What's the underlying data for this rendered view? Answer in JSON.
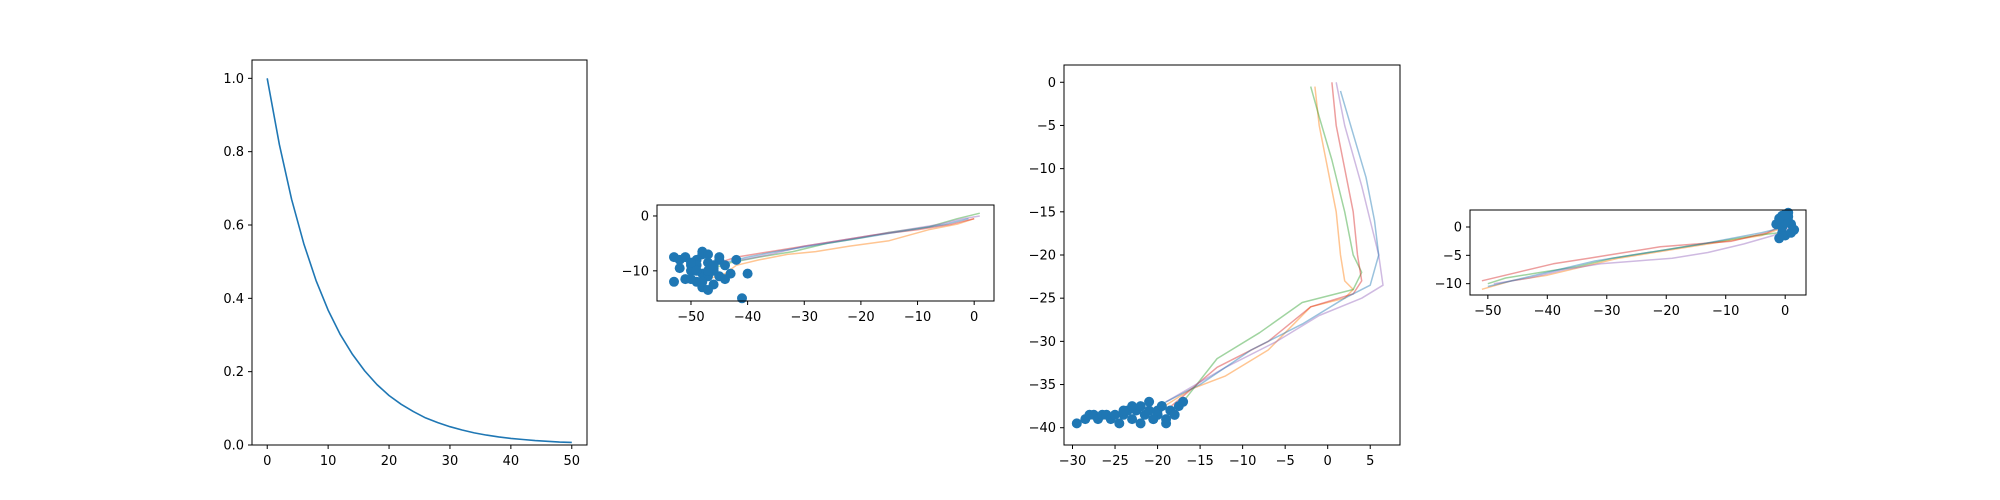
{
  "colors": {
    "decay_line": "#1f77b4",
    "points": "#1f77b4",
    "traj": [
      "#ff7f0e",
      "#2ca02c",
      "#d62728",
      "#9467bd",
      "#1f77b4"
    ]
  },
  "chart_data": [
    {
      "type": "line",
      "title": "",
      "xlabel": "",
      "ylabel": "",
      "xlim": [
        -2.5,
        52.5
      ],
      "ylim": [
        0,
        1.05
      ],
      "xticks": [
        "0",
        "10",
        "20",
        "30",
        "40",
        "50"
      ],
      "yticks": [
        "0.0",
        "0.2",
        "0.4",
        "0.6",
        "0.8",
        "1.0"
      ],
      "series": [
        {
          "x": [
            0,
            2,
            4,
            6,
            8,
            10,
            12,
            14,
            16,
            18,
            20,
            22,
            24,
            26,
            28,
            30,
            32,
            34,
            36,
            38,
            40,
            42,
            44,
            46,
            48,
            50
          ],
          "y": [
            1.0,
            0.819,
            0.67,
            0.549,
            0.449,
            0.368,
            0.301,
            0.247,
            0.202,
            0.165,
            0.135,
            0.111,
            0.091,
            0.074,
            0.061,
            0.05,
            0.041,
            0.033,
            0.027,
            0.022,
            0.018,
            0.015,
            0.012,
            0.01,
            0.008,
            0.007
          ]
        }
      ]
    },
    {
      "type": "scatter",
      "title": "",
      "xlim": [
        -56,
        3.5
      ],
      "ylim": [
        -15.5,
        2
      ],
      "xticks": [
        "−50",
        "−40",
        "−30",
        "−20",
        "−10",
        "0"
      ],
      "yticks": [
        "−10",
        "0"
      ],
      "series": [
        {
          "x": [
            0,
            -3,
            -8,
            -15,
            -22,
            -28,
            -33,
            -38,
            -42,
            -44,
            -47
          ],
          "y": [
            -0.5,
            -1.5,
            -2.5,
            -4.5,
            -5.5,
            -6.5,
            -7,
            -8,
            -9,
            -10.5,
            -11.5
          ]
        },
        {
          "x": [
            1,
            -3,
            -8,
            -15,
            -20,
            -26,
            -32,
            -38,
            -43,
            -46
          ],
          "y": [
            0.5,
            -0.5,
            -2,
            -3,
            -4,
            -5,
            -6.5,
            -7.5,
            -8.5,
            -9.5
          ]
        },
        {
          "x": [
            0,
            -4,
            -10,
            -18,
            -24,
            -30,
            -36,
            -42,
            -45
          ],
          "y": [
            -0.5,
            -1.5,
            -2.5,
            -3.5,
            -4.5,
            -5.5,
            -6.5,
            -7.5,
            -8.5
          ]
        },
        {
          "x": [
            1,
            -2,
            -6,
            -12,
            -18,
            -24,
            -30,
            -36,
            -41
          ],
          "y": [
            0,
            -0.5,
            -1.5,
            -2.5,
            -3.5,
            -4.5,
            -5.5,
            -7,
            -8
          ]
        },
        {
          "x": [
            -1,
            -5,
            -11,
            -17,
            -23,
            -29,
            -35,
            -40,
            -44
          ],
          "y": [
            -0.5,
            -1.5,
            -2.5,
            -3.5,
            -4.5,
            -5.5,
            -6.5,
            -7.5,
            -8.5
          ]
        }
      ],
      "points": {
        "x": [
          -53,
          -52,
          -51,
          -50,
          -49,
          -48,
          -47,
          -46,
          -45,
          -44,
          -50,
          -48,
          -47,
          -49,
          -51,
          -46,
          -45,
          -43,
          -42,
          -48,
          -47,
          -49,
          -52,
          -50,
          -48,
          -47,
          -46,
          -44,
          -41,
          -40,
          -53,
          -50,
          -48,
          -47,
          -46,
          -45,
          -49
        ],
        "y": [
          -7.5,
          -8,
          -7.5,
          -9,
          -8,
          -7,
          -8.5,
          -9.5,
          -8,
          -9,
          -10,
          -10.5,
          -11,
          -12,
          -11.5,
          -12.5,
          -11,
          -10.5,
          -8,
          -13,
          -13.5,
          -9,
          -9.5,
          -8.5,
          -6.5,
          -7,
          -10,
          -11.5,
          -15,
          -10.5,
          -12,
          -11.5,
          -12,
          -10,
          -9,
          -7.5,
          -10
        ]
      }
    },
    {
      "type": "scatter",
      "title": "",
      "xlim": [
        -31,
        8.5
      ],
      "ylim": [
        -42,
        2
      ],
      "xticks": [
        "−30",
        "−25",
        "−20",
        "−15",
        "−10",
        "−5",
        "0",
        "5"
      ],
      "yticks": [
        "−40",
        "−35",
        "−30",
        "−25",
        "−20",
        "−15",
        "−10",
        "−5",
        "0"
      ],
      "series": [
        {
          "x": [
            -1.5,
            -1,
            0,
            1,
            1.5,
            2,
            3,
            2,
            -2,
            -7,
            -12,
            -16,
            -20
          ],
          "y": [
            -0.5,
            -5,
            -10,
            -15,
            -20,
            -23,
            -24,
            -25,
            -26,
            -31,
            -34,
            -35.5,
            -38
          ]
        },
        {
          "x": [
            -2,
            -1,
            0.5,
            2,
            3,
            4,
            3,
            -3,
            -8,
            -13,
            -17
          ],
          "y": [
            -0.5,
            -4,
            -9,
            -15,
            -20,
            -22,
            -24,
            -25.5,
            -29,
            -32,
            -37
          ]
        },
        {
          "x": [
            0.5,
            1,
            2,
            3,
            3.5,
            4,
            3,
            -2,
            -7,
            -13,
            -19
          ],
          "y": [
            0,
            -5,
            -10,
            -15,
            -20,
            -23,
            -24.5,
            -26,
            -30,
            -33,
            -38
          ]
        },
        {
          "x": [
            1,
            2,
            4,
            5,
            6,
            6.5,
            4,
            -1,
            -6,
            -12,
            -19
          ],
          "y": [
            0,
            -5,
            -12,
            -16,
            -20,
            -23.5,
            -25,
            -27,
            -30,
            -33,
            -37
          ]
        },
        {
          "x": [
            1.5,
            3,
            4.5,
            5.5,
            6,
            5,
            2,
            -3,
            -9,
            -15,
            -21
          ],
          "y": [
            -1,
            -6,
            -11,
            -16,
            -20,
            -23.5,
            -25,
            -28,
            -31,
            -35,
            -38
          ]
        }
      ],
      "points": {
        "x": [
          -29.5,
          -28.5,
          -28,
          -27.5,
          -27,
          -26.5,
          -26,
          -25.5,
          -25,
          -24.5,
          -24,
          -23.5,
          -23,
          -22.5,
          -22,
          -21.5,
          -21,
          -20.5,
          -20,
          -19.5,
          -19,
          -18.5,
          -18,
          -17.5,
          -17,
          -22,
          -21,
          -20,
          -19,
          -18,
          -24,
          -23,
          -20.5,
          -19.5
        ],
        "y": [
          -39.5,
          -39,
          -38.5,
          -38.5,
          -39,
          -38.5,
          -38.5,
          -39,
          -38.5,
          -39.5,
          -38.5,
          -38,
          -39,
          -38,
          -39.5,
          -38.5,
          -38,
          -39,
          -38.5,
          -37.5,
          -39,
          -38,
          -38.5,
          -37.5,
          -37,
          -37.5,
          -37,
          -38,
          -39.5,
          -38.5,
          -38,
          -37.5,
          -39,
          -37.5
        ]
      }
    },
    {
      "type": "scatter",
      "title": "",
      "xlim": [
        -53,
        3.5
      ],
      "ylim": [
        -12,
        3
      ],
      "xticks": [
        "−50",
        "−40",
        "−30",
        "−20",
        "−10",
        "0"
      ],
      "yticks": [
        "−10",
        "−5",
        "0"
      ],
      "series": [
        {
          "x": [
            0,
            -4,
            -10,
            -16,
            -22,
            -28,
            -34,
            -40,
            -46,
            -51
          ],
          "y": [
            0,
            -1.5,
            -2.5,
            -3.5,
            -4.5,
            -5.5,
            -7,
            -8.5,
            -9.5,
            -11
          ]
        },
        {
          "x": [
            -1,
            -5,
            -11,
            -17,
            -23,
            -29,
            -35,
            -41,
            -47,
            -50
          ],
          "y": [
            -1,
            -1.5,
            -2.5,
            -3.5,
            -4.5,
            -5.5,
            -7,
            -8,
            -9,
            -10
          ]
        },
        {
          "x": [
            0,
            -3,
            -9,
            -15,
            -21,
            -27,
            -33,
            -39,
            -45,
            -51
          ],
          "y": [
            0.5,
            -1,
            -2.5,
            -3,
            -3.5,
            -4.5,
            -5.5,
            -6.5,
            -8,
            -9.5
          ]
        },
        {
          "x": [
            1,
            -2,
            -7,
            -13,
            -19,
            -25,
            -31,
            -37,
            -43,
            -49
          ],
          "y": [
            0,
            -1.5,
            -3,
            -4.5,
            -5.5,
            -6,
            -6.5,
            -7.5,
            -9,
            -10
          ]
        },
        {
          "x": [
            0,
            -4,
            -9,
            -14,
            -20,
            -26,
            -32,
            -38,
            -44,
            -50
          ],
          "y": [
            0,
            -1,
            -2,
            -3,
            -4,
            -5,
            -6,
            -7.5,
            -9,
            -10.5
          ]
        }
      ],
      "points": {
        "x": [
          -1,
          -0.5,
          0,
          0.5,
          1,
          -1.5,
          -0.5,
          0.5,
          0,
          -1,
          1,
          0.5,
          -0.5,
          0,
          1.5,
          -1,
          0
        ],
        "y": [
          1,
          2,
          1.5,
          2.5,
          0.5,
          0.5,
          -1,
          1,
          -1.5,
          -2,
          -1,
          1.8,
          0,
          0.8,
          -0.5,
          1.5,
          2.2
        ]
      }
    }
  ]
}
